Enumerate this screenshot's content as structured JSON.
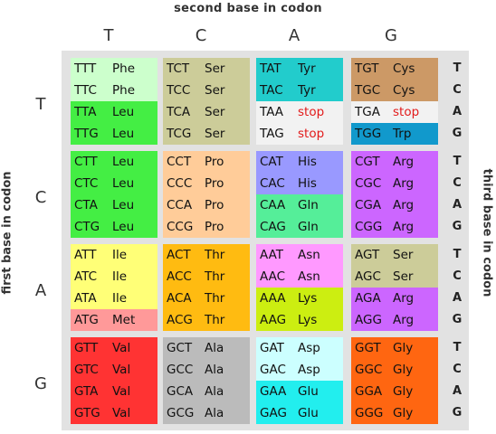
{
  "titles": {
    "top": "second base in codon",
    "left": "first base in codon",
    "right": "third base in codon"
  },
  "second_bases": [
    "T",
    "C",
    "A",
    "G"
  ],
  "first_bases": [
    "T",
    "C",
    "A",
    "G"
  ],
  "third_bases": [
    "T",
    "C",
    "A",
    "G"
  ],
  "colors": {
    "Phe": "#ccffcc",
    "Leu": "#44ee44",
    "Ser": "#cccc99",
    "Tyr": "#22cccc",
    "Cys": "#cc9966",
    "stop_bg": "#f2f2f2",
    "stop_text": "#e21b1b",
    "Trp": "#1199cc",
    "Pro": "#ffcc99",
    "His": "#9999ff",
    "Gln": "#55ee99",
    "Arg": "#cc66ff",
    "Ile": "#ffff77",
    "Met": "#ff9999",
    "Thr": "#ffbb11",
    "Asn": "#ff99ff",
    "Lys": "#ccee11",
    "Val": "#ff3333",
    "Ala": "#bbbbbb",
    "Asp": "#ccffff",
    "Glu": "#22eeee",
    "Gly": "#ff6611"
  },
  "blocks": [
    {
      "lines": [
        [
          "TTT",
          "Phe"
        ],
        [
          "TTC",
          "Phe"
        ],
        [
          "TTA",
          "Leu"
        ],
        [
          "TTG",
          "Leu"
        ]
      ]
    },
    {
      "lines": [
        [
          "TCT",
          "Ser"
        ],
        [
          "TCC",
          "Ser"
        ],
        [
          "TCA",
          "Ser"
        ],
        [
          "TCG",
          "Ser"
        ]
      ]
    },
    {
      "lines": [
        [
          "TAT",
          "Tyr"
        ],
        [
          "TAC",
          "Tyr"
        ],
        [
          "TAA",
          "stop"
        ],
        [
          "TAG",
          "stop"
        ]
      ]
    },
    {
      "lines": [
        [
          "TGT",
          "Cys"
        ],
        [
          "TGC",
          "Cys"
        ],
        [
          "TGA",
          "stop"
        ],
        [
          "TGG",
          "Trp"
        ]
      ]
    },
    {
      "lines": [
        [
          "CTT",
          "Leu"
        ],
        [
          "CTC",
          "Leu"
        ],
        [
          "CTA",
          "Leu"
        ],
        [
          "CTG",
          "Leu"
        ]
      ]
    },
    {
      "lines": [
        [
          "CCT",
          "Pro"
        ],
        [
          "CCC",
          "Pro"
        ],
        [
          "CCA",
          "Pro"
        ],
        [
          "CCG",
          "Pro"
        ]
      ]
    },
    {
      "lines": [
        [
          "CAT",
          "His"
        ],
        [
          "CAC",
          "His"
        ],
        [
          "CAA",
          "Gln"
        ],
        [
          "CAG",
          "Gln"
        ]
      ]
    },
    {
      "lines": [
        [
          "CGT",
          "Arg"
        ],
        [
          "CGC",
          "Arg"
        ],
        [
          "CGA",
          "Arg"
        ],
        [
          "CGG",
          "Arg"
        ]
      ]
    },
    {
      "lines": [
        [
          "ATT",
          "Ile"
        ],
        [
          "ATC",
          "Ile"
        ],
        [
          "ATA",
          "Ile"
        ],
        [
          "ATG",
          "Met"
        ]
      ]
    },
    {
      "lines": [
        [
          "ACT",
          "Thr"
        ],
        [
          "ACC",
          "Thr"
        ],
        [
          "ACA",
          "Thr"
        ],
        [
          "ACG",
          "Thr"
        ]
      ]
    },
    {
      "lines": [
        [
          "AAT",
          "Asn"
        ],
        [
          "AAC",
          "Asn"
        ],
        [
          "AAA",
          "Lys"
        ],
        [
          "AAG",
          "Lys"
        ]
      ]
    },
    {
      "lines": [
        [
          "AGT",
          "Ser"
        ],
        [
          "AGC",
          "Ser"
        ],
        [
          "AGA",
          "Arg"
        ],
        [
          "AGG",
          "Arg"
        ]
      ]
    },
    {
      "lines": [
        [
          "GTT",
          "Val"
        ],
        [
          "GTC",
          "Val"
        ],
        [
          "GTA",
          "Val"
        ],
        [
          "GTG",
          "Val"
        ]
      ]
    },
    {
      "lines": [
        [
          "GCT",
          "Ala"
        ],
        [
          "GCC",
          "Ala"
        ],
        [
          "GCA",
          "Ala"
        ],
        [
          "GCG",
          "Ala"
        ]
      ]
    },
    {
      "lines": [
        [
          "GAT",
          "Asp"
        ],
        [
          "GAC",
          "Asp"
        ],
        [
          "GAA",
          "Glu"
        ],
        [
          "GAG",
          "Glu"
        ]
      ]
    },
    {
      "lines": [
        [
          "GGT",
          "Gly"
        ],
        [
          "GGC",
          "Gly"
        ],
        [
          "GGA",
          "Gly"
        ],
        [
          "GGG",
          "Gly"
        ]
      ]
    }
  ]
}
